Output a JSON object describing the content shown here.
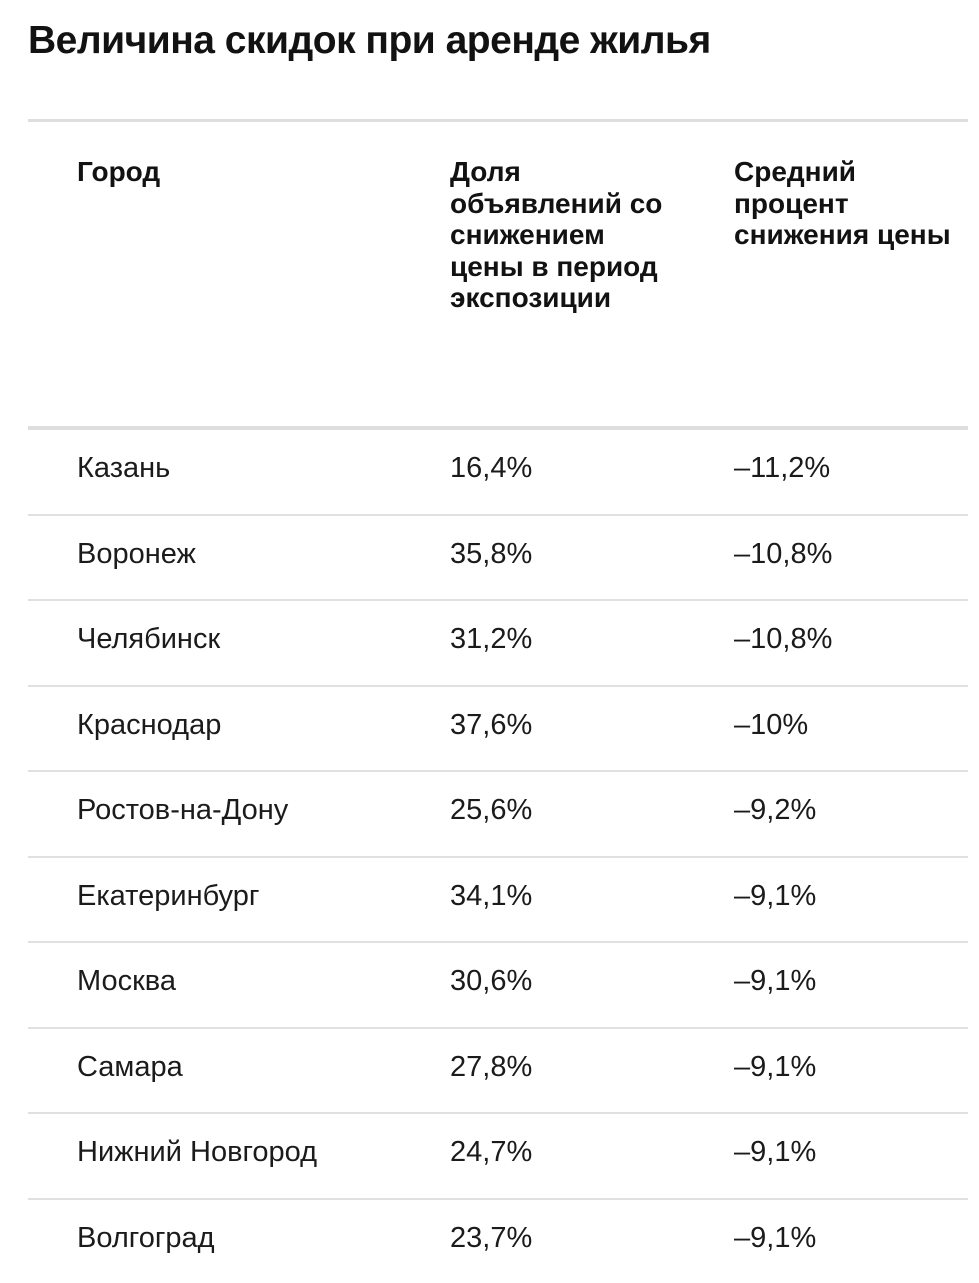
{
  "title": "Величина скидок при аренде жилья",
  "chart_data": {
    "type": "table",
    "title": "Величина скидок при аренде жилья",
    "columns": [
      "Город",
      "Доля объявлений со снижением цены в период экспозиции",
      "Средний процент снижения цены"
    ],
    "rows": [
      [
        "Казань",
        "16,4%",
        "–11,2%"
      ],
      [
        "Воронеж",
        "35,8%",
        "–10,8%"
      ],
      [
        "Челябинск",
        "31,2%",
        "–10,8%"
      ],
      [
        "Краснодар",
        "37,6%",
        "–10%"
      ],
      [
        "Ростов-на-Дону",
        "25,6%",
        "–9,2%"
      ],
      [
        "Екатеринбург",
        "34,1%",
        "–9,1%"
      ],
      [
        "Москва",
        "30,6%",
        "–9,1%"
      ],
      [
        "Самара",
        "27,8%",
        "–9,1%"
      ],
      [
        "Нижний Новгород",
        "24,7%",
        "–9,1%"
      ],
      [
        "Волгоград",
        "23,7%",
        "–9,1%"
      ]
    ]
  }
}
